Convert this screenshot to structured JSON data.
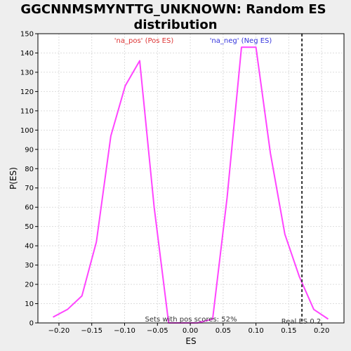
{
  "chart_data": {
    "type": "line",
    "title_line1": "GGCNNMSMYNTTG_UNKNOWN: Random ES",
    "title_line2": "distribution",
    "xlabel": "ES",
    "ylabel": "P(ES)",
    "xlim": [
      -0.232,
      0.234
    ],
    "ylim": [
      0,
      150
    ],
    "x_ticks": [
      -0.2,
      -0.15,
      -0.1,
      -0.05,
      0.0,
      0.05,
      0.1,
      0.15,
      0.2
    ],
    "x_tick_labels": [
      "−0.20",
      "−0.15",
      "−0.10",
      "−0.05",
      "0.00",
      "0.05",
      "0.10",
      "0.15",
      "0.20"
    ],
    "y_ticks": [
      0,
      10,
      20,
      30,
      40,
      50,
      60,
      70,
      80,
      90,
      100,
      110,
      120,
      130,
      140,
      150
    ],
    "grid": true,
    "series": [
      {
        "color": "#ff44ff",
        "x": [
          -0.209,
          -0.187,
          -0.165,
          -0.143,
          -0.121,
          -0.099,
          -0.077,
          -0.055,
          -0.033,
          -0.011,
          0.011,
          0.034,
          0.056,
          0.078,
          0.1,
          0.122,
          0.144,
          0.166,
          0.188,
          0.21
        ],
        "y": [
          3,
          7,
          14,
          42,
          97,
          123,
          136,
          60,
          0,
          0,
          0,
          2,
          65,
          143,
          143,
          88,
          46,
          24,
          7,
          2
        ]
      }
    ],
    "real_es": {
      "x": 0.17,
      "label": "Real ES 0.2",
      "color": "#333333"
    },
    "annotations": {
      "pos_label": "'na_pos' (Pos ES)",
      "pos_color": "#dd3333",
      "neg_label": "'na_neg' (Neg ES)",
      "neg_color": "#3333dd",
      "sets_label": "Sets with pos scores: 52%"
    },
    "plot_background": "#ffffff",
    "grid_color": "#dddddd"
  }
}
